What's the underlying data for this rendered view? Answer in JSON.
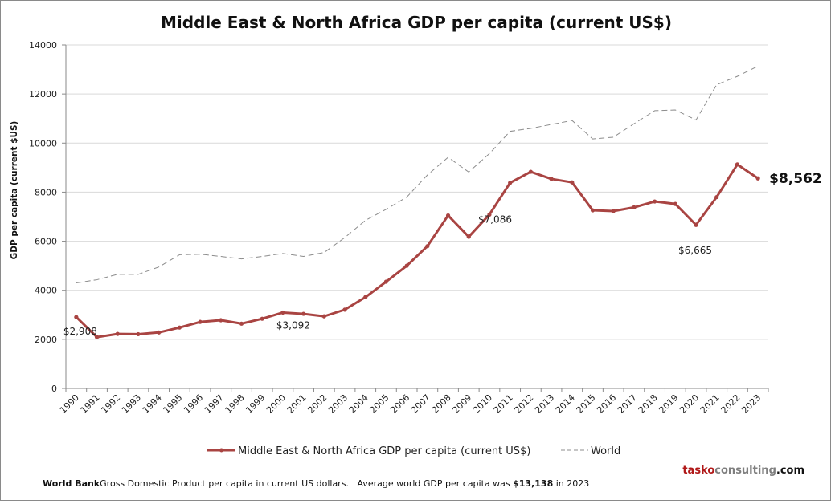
{
  "chart_data": {
    "type": "line",
    "title": "Middle East & North Africa GDP per capita (current US$)",
    "xlabel": "",
    "ylabel": "GDP per capita (current $US)",
    "ylim": [
      0,
      14000
    ],
    "yticks": [
      0,
      2000,
      4000,
      6000,
      8000,
      10000,
      12000,
      14000
    ],
    "grid": true,
    "legend_position": "bottom",
    "categories": [
      "1990",
      "1991",
      "1992",
      "1993",
      "1994",
      "1995",
      "1996",
      "1997",
      "1998",
      "1999",
      "2000",
      "2001",
      "2002",
      "2003",
      "2004",
      "2005",
      "2006",
      "2007",
      "2008",
      "2009",
      "2010",
      "2011",
      "2012",
      "2013",
      "2014",
      "2015",
      "2016",
      "2017",
      "2018",
      "2019",
      "2020",
      "2021",
      "2022",
      "2023"
    ],
    "series": [
      {
        "name": "Middle East & North Africa GDP per capita (current US$)",
        "color": "#a94442",
        "style": "solid-markers",
        "values": [
          2908,
          2090,
          2220,
          2210,
          2280,
          2480,
          2710,
          2780,
          2640,
          2840,
          3092,
          3040,
          2940,
          3210,
          3720,
          4350,
          5000,
          5800,
          7050,
          6180,
          7086,
          8380,
          8830,
          8540,
          8400,
          7260,
          7230,
          7380,
          7620,
          7520,
          6665,
          7800,
          9130,
          8562
        ]
      },
      {
        "name": "World",
        "color": "#8c8c8c",
        "style": "dashed",
        "values": [
          4300,
          4430,
          4650,
          4650,
          4950,
          5450,
          5470,
          5380,
          5280,
          5380,
          5500,
          5380,
          5540,
          6150,
          6850,
          7300,
          7800,
          8700,
          9420,
          8820,
          9570,
          10480,
          10600,
          10760,
          10920,
          10170,
          10240,
          10790,
          11320,
          11350,
          10940,
          12380,
          12720,
          13138
        ]
      }
    ],
    "annotations": [
      {
        "category": "1990",
        "text": "$2,908"
      },
      {
        "category": "2000",
        "text": "$3,092"
      },
      {
        "category": "2010",
        "text": "$7,086"
      },
      {
        "category": "2020",
        "text": "$6,665"
      },
      {
        "category": "2023",
        "text": "$8,562",
        "emphasis": true
      }
    ]
  },
  "legend": {
    "items": [
      "Middle East & North Africa GDP per capita (current US$)",
      "World"
    ]
  },
  "footer": {
    "source": "World Bank",
    "text_1": "Gross Domestic Product per capita in current US dollars.   Average world GDP per capita was ",
    "highlight": "$13,138",
    "text_2": " in 2023"
  },
  "brand": {
    "part1": "tasko",
    "part2": "consulting",
    "part3": ".com",
    "color1": "#b01818",
    "color2": "#7f7f7f",
    "color3": "#111111"
  }
}
